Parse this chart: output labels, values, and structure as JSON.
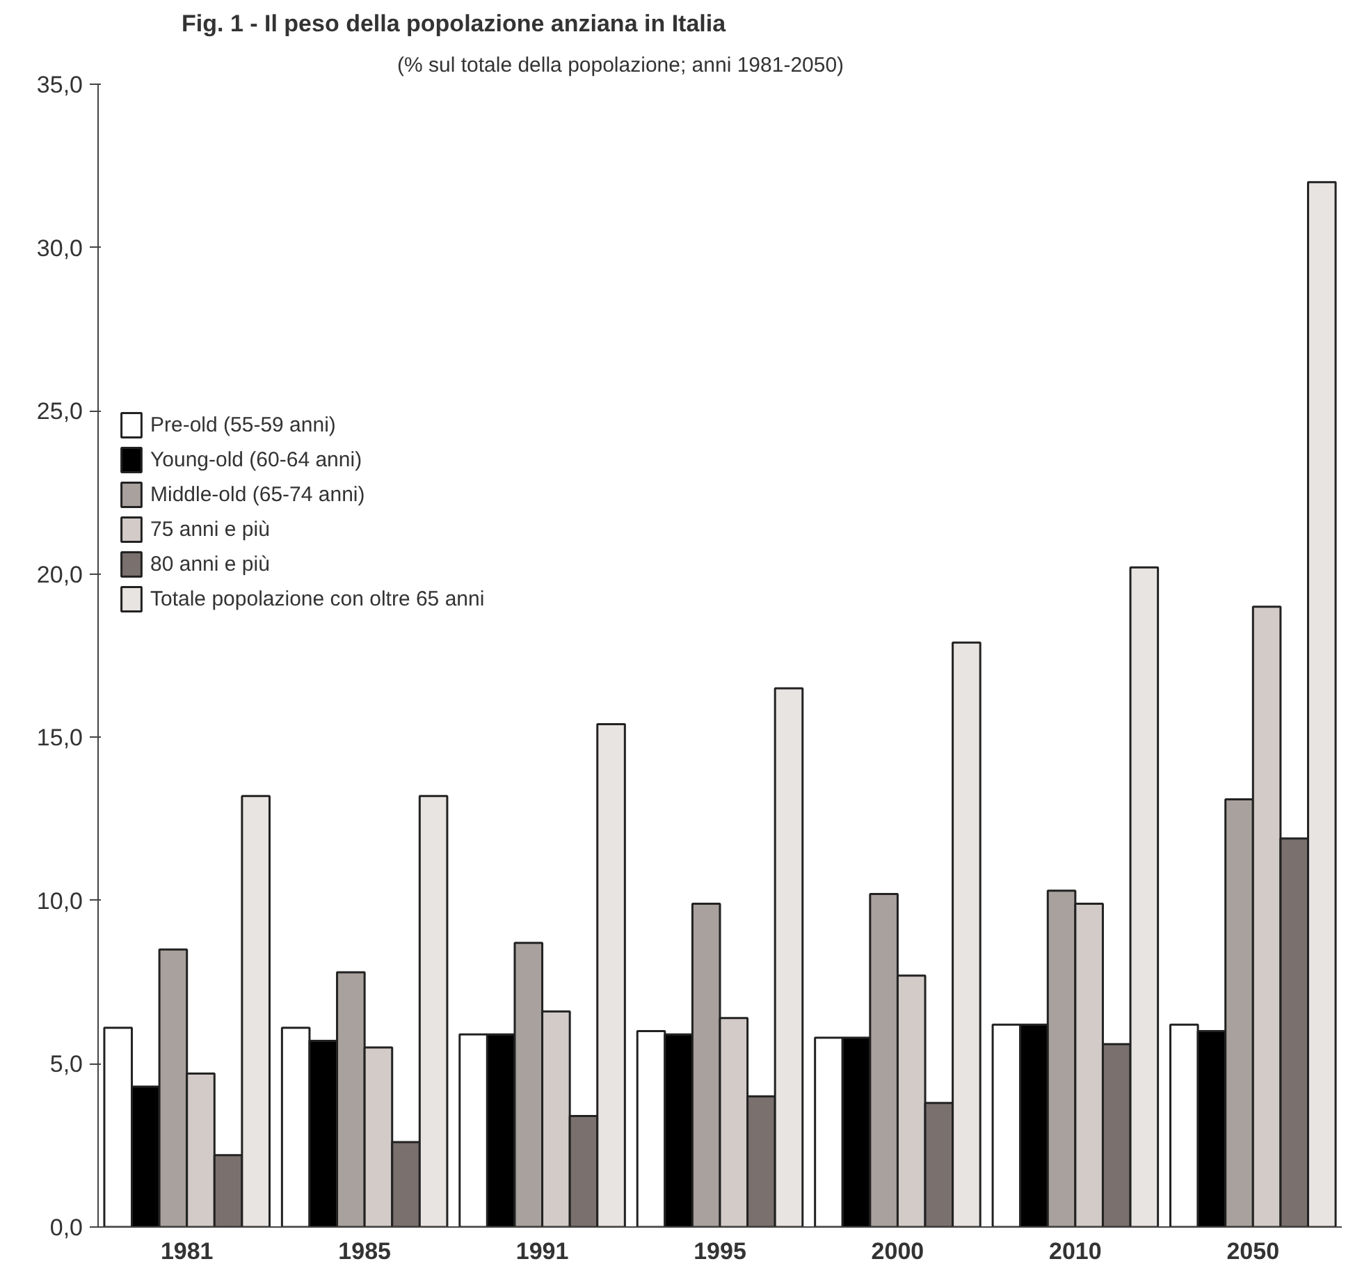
{
  "chart_data": {
    "type": "bar",
    "title": "Fig. 1 - Il peso della popolazione anziana in Italia",
    "subtitle": "(% sul totale della popolazione; anni 1981-2050)",
    "categories": [
      "1981",
      "1985",
      "1991",
      "1995",
      "2000",
      "2010",
      "2050"
    ],
    "series": [
      {
        "name": "Pre-old (55-59 anni)",
        "color": "#ffffff",
        "values": [
          6.1,
          6.1,
          5.9,
          6.0,
          5.8,
          6.2,
          6.2
        ]
      },
      {
        "name": "Young-old (60-64 anni)",
        "color": "#000000",
        "values": [
          4.3,
          5.7,
          5.9,
          5.9,
          5.8,
          6.2,
          6.0
        ]
      },
      {
        "name": "Middle-old (65-74 anni)",
        "color": "#a9a19d",
        "values": [
          8.5,
          7.8,
          8.7,
          9.9,
          10.2,
          10.3,
          13.1
        ]
      },
      {
        "name": "75 anni e più",
        "color": "#d3cbc8",
        "values": [
          4.7,
          5.5,
          6.6,
          6.4,
          7.7,
          9.9,
          19.0
        ]
      },
      {
        "name": "80 anni e più",
        "color": "#7a706d",
        "values": [
          2.2,
          2.6,
          3.4,
          4.0,
          3.8,
          5.6,
          11.9
        ]
      },
      {
        "name": "Totale popolazione con oltre 65 anni",
        "color": "#e8e4e2",
        "values": [
          13.2,
          13.2,
          15.4,
          16.5,
          17.9,
          20.2,
          32.0
        ]
      }
    ],
    "ylim": [
      0,
      35
    ],
    "yticks": [
      {
        "value": 0,
        "label": "0,0"
      },
      {
        "value": 5,
        "label": "5,0"
      },
      {
        "value": 10,
        "label": "10,0"
      },
      {
        "value": 15,
        "label": "15,0"
      },
      {
        "value": 20,
        "label": "20,0"
      },
      {
        "value": 25,
        "label": "25,0"
      },
      {
        "value": 30,
        "label": "30,0"
      },
      {
        "value": 35,
        "label": "35,0"
      }
    ],
    "legend": "top left",
    "grid": false
  }
}
